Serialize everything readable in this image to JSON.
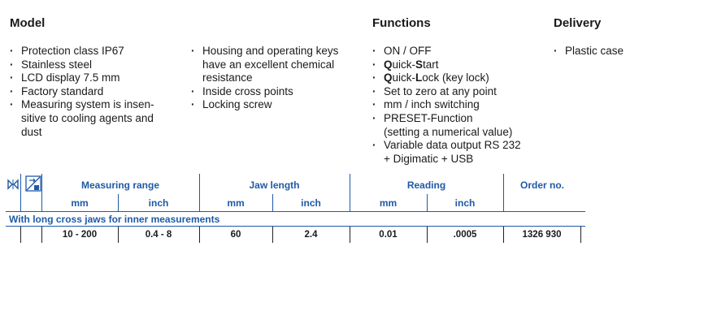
{
  "model": {
    "title": "Model",
    "col1": [
      "Protection class IP67",
      "Stainless steel",
      "LCD display 7.5 mm",
      "Factory standard",
      "Measuring system is insen-\nsitive to cooling agents and\ndust"
    ],
    "col2": [
      "Housing and operating keys\nhave an excellent chemical\nresistance",
      "Inside cross points",
      "Locking screw"
    ]
  },
  "functions": {
    "title": "Functions",
    "items": {
      "on_off": "ON / OFF",
      "quick_start": {
        "q": "Q",
        "a": "uick-",
        "s": "S",
        "b": "tart"
      },
      "quick_lock": {
        "q": "Q",
        "a": "uick-",
        "l": "L",
        "b": "ock (key lock)"
      },
      "zero": "Set to zero at any point",
      "switching": "mm / inch switching",
      "preset": "PRESET-Function\n(setting a numerical value)",
      "data_output": "Variable data output RS 232\n+ Digimatic + USB"
    }
  },
  "delivery": {
    "title": "Delivery",
    "items": [
      "Plastic case"
    ]
  },
  "table": {
    "icons": [
      "jaw-type-icon",
      "measurement-direction-icon"
    ],
    "headers": {
      "measuring_range": "Measuring range",
      "jaw_length": "Jaw length",
      "reading": "Reading",
      "order_no": "Order no.",
      "mm1": "mm",
      "inch1": "inch",
      "mm2": "mm",
      "inch2": "inch",
      "mm3": "mm",
      "inch3": "inch"
    },
    "section": "With long cross jaws for inner measurements",
    "rows": [
      {
        "range_mm": "10 - 200",
        "range_inch": "0.4 - 8",
        "jaw_mm": "60",
        "jaw_inch": "2.4",
        "read_mm": "0.01",
        "read_inch": ".0005",
        "order_no": "1326 930"
      }
    ],
    "accent_color": "#1f5aa6"
  }
}
